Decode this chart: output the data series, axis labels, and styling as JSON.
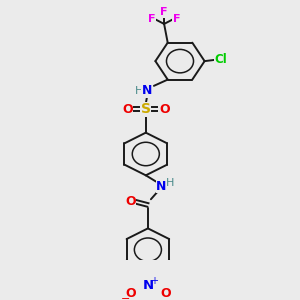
{
  "bg_color": "#ebebeb",
  "bond_color": "#1a1a1a",
  "colors": {
    "F": "#ee00ee",
    "Cl": "#00cc00",
    "N": "#0000ee",
    "O": "#ee0000",
    "S": "#ccaa00",
    "H": "#4a8a8a",
    "C": "#1a1a1a"
  },
  "figsize": [
    3.0,
    3.0
  ],
  "dpi": 100
}
